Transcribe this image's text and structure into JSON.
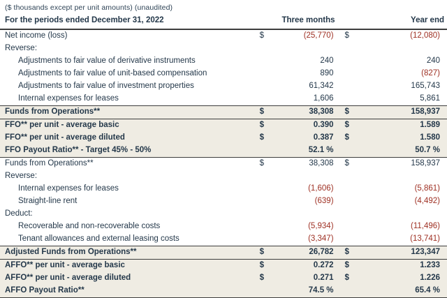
{
  "colors": {
    "text": "#24384a",
    "negative": "#9e2f22",
    "row_shade": "#efece3",
    "border": "#3d3d3d"
  },
  "table": {
    "note": "($ thousands except per unit amounts) (unaudited)",
    "period_label": "For the periods ended December 31, 2022",
    "col1": "Three months",
    "col2": "Year end",
    "currency_symbol": "$",
    "rows": [
      {
        "label": "Net income (loss)",
        "dollar": true,
        "v1": "(25,770)",
        "neg1": true,
        "v2": "(12,080)",
        "neg2": true
      },
      {
        "label": "Reverse:",
        "v1": "",
        "v2": ""
      },
      {
        "label": "Adjustments to fair value of derivative instruments",
        "indent": true,
        "v1": "240",
        "v2": "240"
      },
      {
        "label": "Adjustments to fair value of unit-based compensation",
        "indent": true,
        "v1": "890",
        "v2": "(827)",
        "neg2": true
      },
      {
        "label": "Adjustments to fair value of investment properties",
        "indent": true,
        "v1": "61,342",
        "v2": "165,743"
      },
      {
        "label": "Internal expenses for leases",
        "indent": true,
        "v1": "1,606",
        "v2": "5,861"
      },
      {
        "label": "Funds from Operations**",
        "bold": true,
        "shaded": true,
        "dollar": true,
        "bt": true,
        "bb": true,
        "v1": "38,308",
        "v2": "158,937"
      },
      {
        "label": "FFO** per unit - average basic",
        "bold": true,
        "shaded": true,
        "dollar": true,
        "v1": "0.390",
        "v2": "1.589"
      },
      {
        "label": "FFO** per unit - average diluted",
        "bold": true,
        "shaded": true,
        "dollar": true,
        "v1": "0.387",
        "v2": "1.580"
      },
      {
        "label": "FFO Payout Ratio** - Target 45% - 50%",
        "bold": true,
        "shaded": true,
        "bb": true,
        "v1": "52.1 %",
        "v2": "50.7 %"
      },
      {
        "label": "Funds from Operations**",
        "dollar": true,
        "v1": "38,308",
        "v2": "158,937"
      },
      {
        "label": "Reverse:",
        "v1": "",
        "v2": ""
      },
      {
        "label": "Internal expenses for leases",
        "indent": true,
        "v1": "(1,606)",
        "neg1": true,
        "v2": "(5,861)",
        "neg2": true
      },
      {
        "label": "Straight-line rent",
        "indent": true,
        "v1": "(639)",
        "neg1": true,
        "v2": "(4,492)",
        "neg2": true
      },
      {
        "label": "Deduct:",
        "v1": "",
        "v2": ""
      },
      {
        "label": "Recoverable and non-recoverable costs",
        "indent": true,
        "v1": "(5,934)",
        "neg1": true,
        "v2": "(11,496)",
        "neg2": true
      },
      {
        "label": "Tenant allowances and external leasing costs",
        "indent": true,
        "v1": "(3,347)",
        "neg1": true,
        "v2": "(13,741)",
        "neg2": true
      },
      {
        "label": "Adjusted Funds from Operations**",
        "bold": true,
        "shaded": true,
        "dollar": true,
        "bt": true,
        "bb": true,
        "v1": "26,782",
        "v2": "123,347"
      },
      {
        "label": "AFFO** per unit - average basic",
        "bold": true,
        "shaded": true,
        "dollar": true,
        "v1": "0.272",
        "v2": "1.233"
      },
      {
        "label": "AFFO** per unit - average diluted",
        "bold": true,
        "shaded": true,
        "dollar": true,
        "v1": "0.271",
        "v2": "1.226"
      },
      {
        "label": "AFFO Payout Ratio**",
        "bold": true,
        "shaded": true,
        "bb": true,
        "v1": "74.5 %",
        "v2": "65.4 %"
      }
    ]
  }
}
